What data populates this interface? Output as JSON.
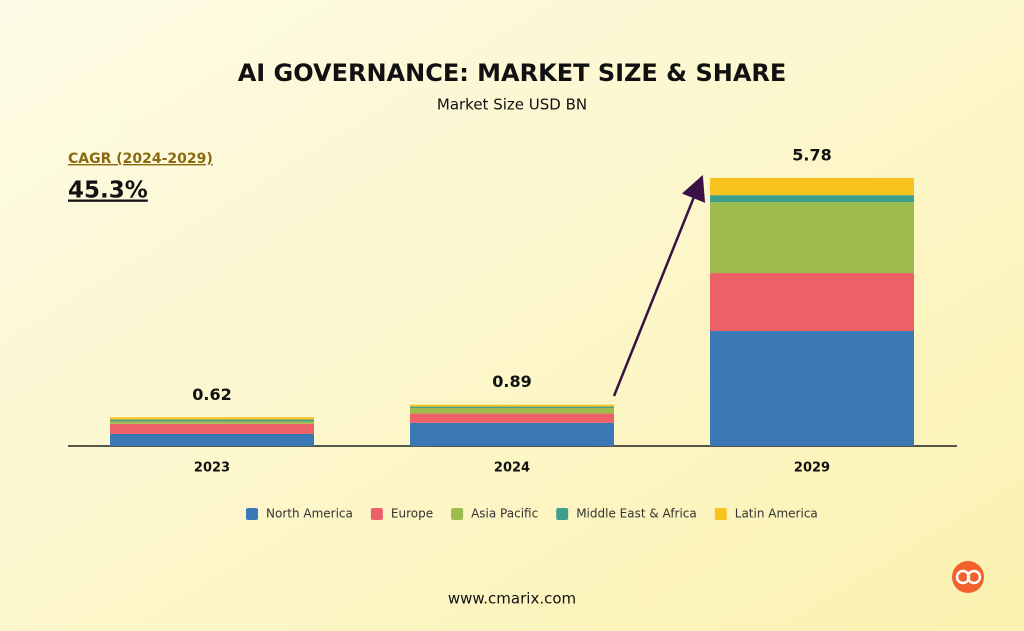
{
  "chart_data": {
    "type": "stacked-bar",
    "title": "AI GOVERNANCE: MARKET SIZE & SHARE",
    "subtitle": "Market Size USD BN",
    "annotation": {
      "label": "CAGR (2024-2029)",
      "value": "45.3%"
    },
    "categories": [
      "2023",
      "2024",
      "2029"
    ],
    "totals": [
      0.62,
      0.89,
      5.78
    ],
    "series": [
      {
        "name": "North America",
        "color": "#3a78b5",
        "values": [
          0.26,
          0.5,
          2.48
        ]
      },
      {
        "name": "Europe",
        "color": "#ec6068",
        "values": [
          0.22,
          0.2,
          1.25
        ]
      },
      {
        "name": "Asia Pacific",
        "color": "#9ebb4f",
        "values": [
          0.05,
          0.12,
          1.53
        ]
      },
      {
        "name": "Middle East & Africa",
        "color": "#3f9e8c",
        "values": [
          0.04,
          0.03,
          0.15
        ]
      },
      {
        "name": "Latin America",
        "color": "#f7c31c",
        "values": [
          0.05,
          0.04,
          0.37
        ]
      }
    ],
    "ylim": [
      0,
      5.78
    ],
    "footer": "www.cmarix.com"
  }
}
